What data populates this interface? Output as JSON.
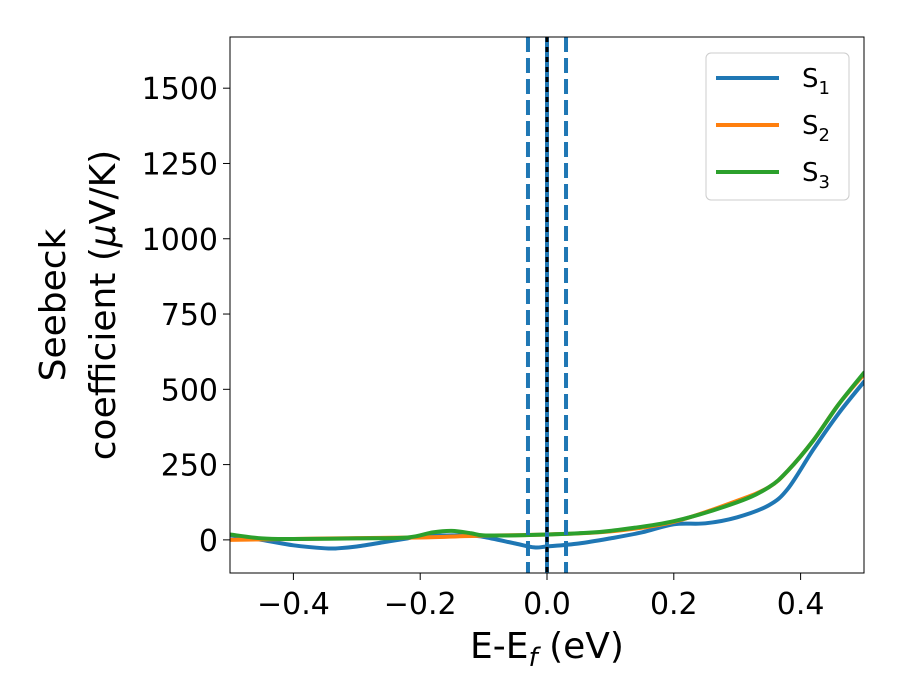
{
  "chart_data": {
    "type": "line",
    "xlabel": "E-E",
    "xlabel_sub": "f",
    "xlabel_unit": " (eV)",
    "ylabel_line1": "Seebeck",
    "ylabel_line2": "coefficient  (",
    "ylabel_mu": "μ",
    "ylabel_unit": "V/K)",
    "xlim": [
      -0.5,
      0.5
    ],
    "ylim": [
      -110,
      1670
    ],
    "xticks": [
      -0.4,
      -0.2,
      0.0,
      0.2,
      0.4
    ],
    "xtick_labels": [
      "−0.4",
      "−0.2",
      "0.0",
      "0.2",
      "0.4"
    ],
    "yticks": [
      0,
      250,
      500,
      750,
      1000,
      1250,
      1500
    ],
    "ytick_labels": [
      "0",
      "250",
      "500",
      "750",
      "1000",
      "1250",
      "1500"
    ],
    "grid": false,
    "legend_position": "top-right",
    "series": [
      {
        "name": "S",
        "subscript": "1",
        "color": "#1f77b4",
        "x": [
          -0.5,
          -0.45,
          -0.4,
          -0.35,
          -0.33,
          -0.3,
          -0.25,
          -0.22,
          -0.2,
          -0.15,
          -0.12,
          -0.1,
          -0.05,
          -0.02,
          0.0,
          0.05,
          0.1,
          0.15,
          0.2,
          0.25,
          0.3,
          0.35,
          0.38,
          0.42,
          0.46,
          0.5
        ],
        "y": [
          15,
          0,
          -18,
          -28,
          -28,
          -22,
          -5,
          5,
          12,
          15,
          14,
          10,
          -12,
          -25,
          -22,
          -12,
          5,
          25,
          52,
          55,
          75,
          115,
          170,
          300,
          420,
          525
        ]
      },
      {
        "name": "S",
        "subscript": "2",
        "color": "#ff7f0e",
        "x": [
          -0.5,
          -0.4,
          -0.3,
          -0.2,
          -0.1,
          0.0,
          0.1,
          0.2,
          0.3,
          0.35,
          0.38,
          0.42,
          0.46,
          0.5
        ],
        "y": [
          0,
          3,
          6,
          8,
          14,
          18,
          28,
          60,
          130,
          175,
          230,
          330,
          450,
          550
        ]
      },
      {
        "name": "S",
        "subscript": "3",
        "color": "#2ca02c",
        "x": [
          -0.5,
          -0.45,
          -0.4,
          -0.3,
          -0.22,
          -0.18,
          -0.15,
          -0.12,
          -0.1,
          -0.05,
          0.0,
          0.05,
          0.1,
          0.2,
          0.3,
          0.35,
          0.38,
          0.42,
          0.46,
          0.5
        ],
        "y": [
          18,
          5,
          3,
          5,
          8,
          25,
          30,
          22,
          15,
          15,
          18,
          22,
          30,
          62,
          125,
          175,
          230,
          330,
          450,
          555
        ]
      }
    ],
    "vlines": [
      {
        "x": -0.03,
        "color": "#1f77b4",
        "style": "dashed"
      },
      {
        "x": 0.0,
        "color": "#1f77b4",
        "style": "solid"
      },
      {
        "x": 0.0,
        "color": "#000000",
        "style": "dotted"
      },
      {
        "x": 0.03,
        "color": "#1f77b4",
        "style": "dashed"
      }
    ]
  }
}
